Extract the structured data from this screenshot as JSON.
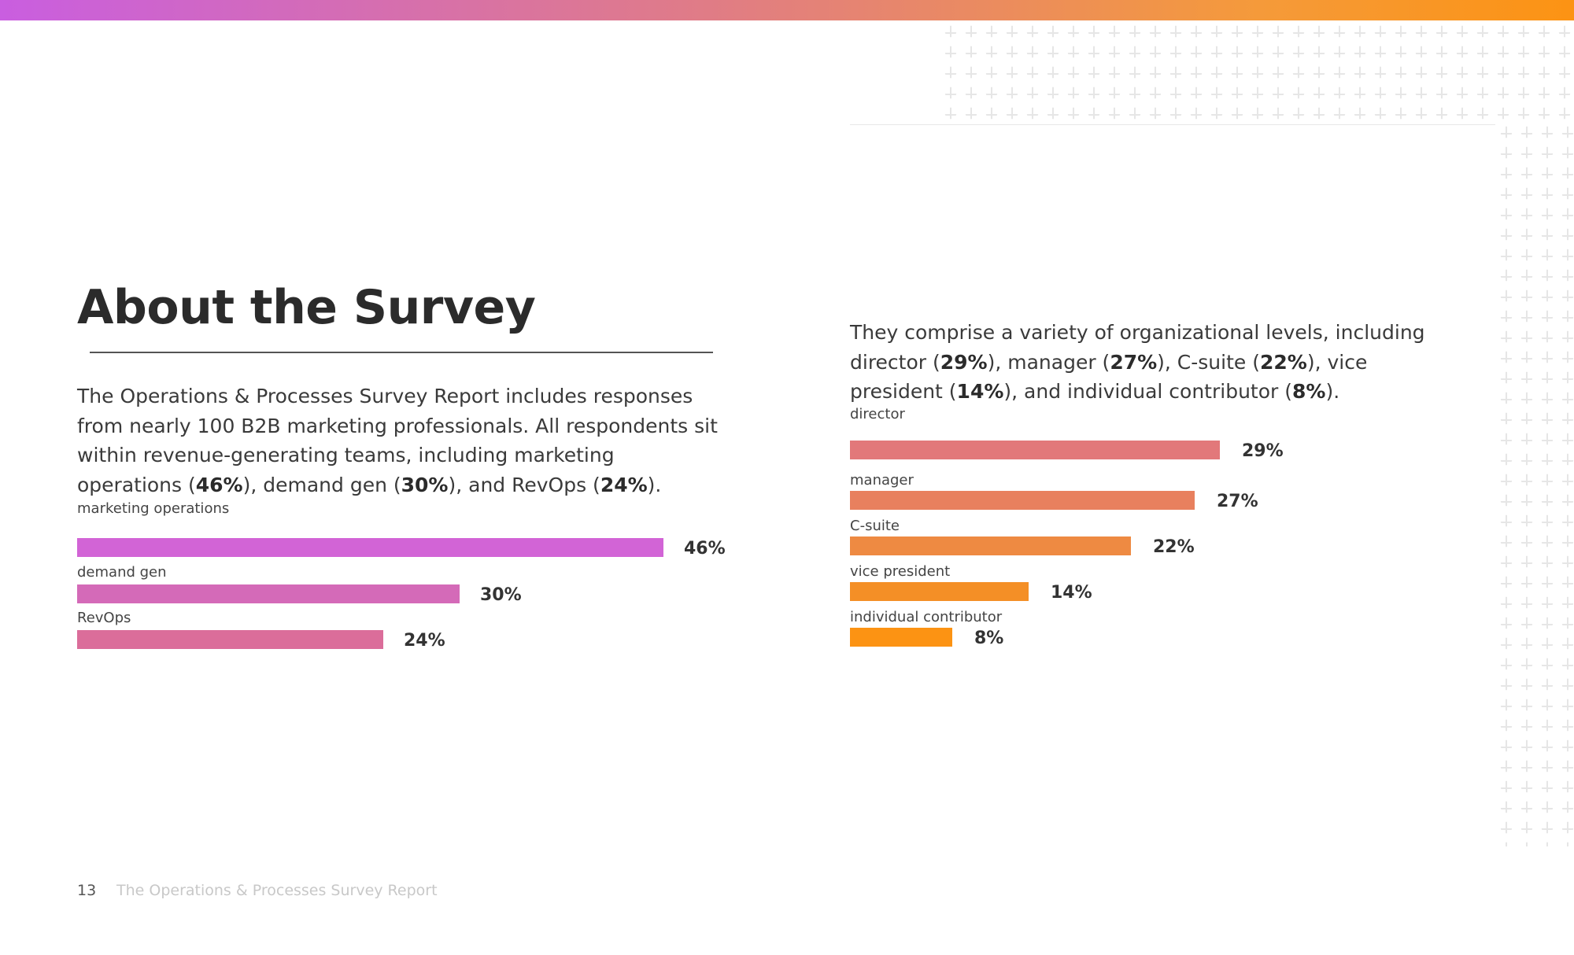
{
  "page": {
    "title": "About the Survey",
    "paragraph_left": [
      {
        "text": "The Operations & Processes Survey Report includes responses from nearly 100 B2B marketing professionals. All respondents sit within revenue-generating teams, including marketing operations (",
        "bold": false
      },
      {
        "text": "46%",
        "bold": true
      },
      {
        "text": "), demand gen (",
        "bold": false
      },
      {
        "text": "30%",
        "bold": true
      },
      {
        "text": "), and RevOps (",
        "bold": false
      },
      {
        "text": "24%",
        "bold": true
      },
      {
        "text": ").",
        "bold": false
      }
    ],
    "paragraph_right": [
      {
        "text": "They comprise a variety of organizational levels, including director (",
        "bold": false
      },
      {
        "text": "29%",
        "bold": true
      },
      {
        "text": "), manager (",
        "bold": false
      },
      {
        "text": "27%",
        "bold": true
      },
      {
        "text": "), C-suite (",
        "bold": false
      },
      {
        "text": "22%",
        "bold": true
      },
      {
        "text": "), vice president (",
        "bold": false
      },
      {
        "text": "14%",
        "bold": true
      },
      {
        "text": "), and individual contributor (",
        "bold": false
      },
      {
        "text": "8%",
        "bold": true
      },
      {
        "text": ").",
        "bold": false
      }
    ],
    "footer": {
      "page_number": "13",
      "report_title": "The Operations & Processes Survey Report"
    }
  },
  "colors": {
    "accent_gradient": [
      "#c95ee0",
      "#e07c86",
      "#fc9313"
    ],
    "text_dark": "#2b2b2b"
  },
  "chart_data": [
    {
      "type": "bar",
      "orientation": "horizontal",
      "categories": [
        "marketing operations",
        "demand gen",
        "RevOps"
      ],
      "values": [
        46,
        30,
        24
      ],
      "value_labels": [
        "46%",
        "30%",
        "24%"
      ],
      "colors": [
        "#d264d6",
        "#d46ab8",
        "#db6d9a"
      ],
      "xlim": [
        0,
        46
      ]
    },
    {
      "type": "bar",
      "orientation": "horizontal",
      "categories": [
        "director",
        "manager",
        "C-suite",
        "vice president",
        "individual contributor"
      ],
      "values": [
        29,
        27,
        22,
        14,
        8
      ],
      "value_labels": [
        "29%",
        "27%",
        "22%",
        "14%",
        "8%"
      ],
      "colors": [
        "#e2787a",
        "#e8805e",
        "#ee8a42",
        "#f48f26",
        "#fc9313"
      ],
      "xlim": [
        0,
        29
      ]
    }
  ]
}
